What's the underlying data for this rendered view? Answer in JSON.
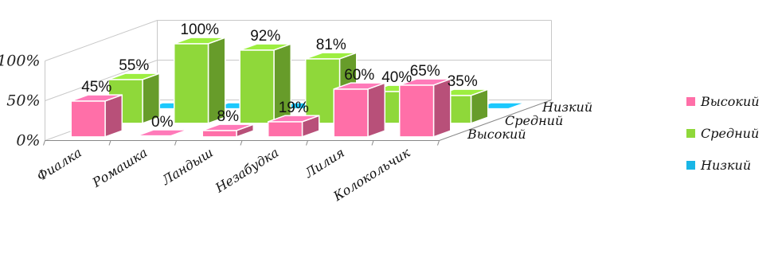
{
  "chart_data": {
    "type": "bar",
    "categories": [
      "Фиалка",
      "Ромашка",
      "Ландыш",
      "Незабудка",
      "Лилия",
      "Колокольчик"
    ],
    "series": [
      {
        "name": "Высокий",
        "values": [
          45,
          0,
          8,
          19,
          60,
          65
        ]
      },
      {
        "name": "Средний",
        "values": [
          55,
          100,
          92,
          81,
          40,
          35
        ]
      },
      {
        "name": "Низкий",
        "values": [
          0,
          0,
          0,
          0,
          0,
          0
        ]
      }
    ],
    "y_ticks": [
      "0%",
      "50%",
      "100%"
    ],
    "ylim": [
      0,
      100
    ],
    "data_labels": {
      "Высокий": [
        "45%",
        "0%",
        "8%",
        "19%",
        "60%",
        "65%"
      ],
      "Средний": [
        "55%",
        "100%",
        "92%",
        "81%",
        "40%",
        "35%"
      ]
    },
    "colors": {
      "Высокий": "#ff6fa8",
      "Средний": "#8fd83a",
      "Низкий": "#19b6e6"
    },
    "legend": {
      "placement": "right",
      "entries": [
        "Высокий",
        "Средний",
        "Низкий"
      ]
    },
    "grid": true
  }
}
